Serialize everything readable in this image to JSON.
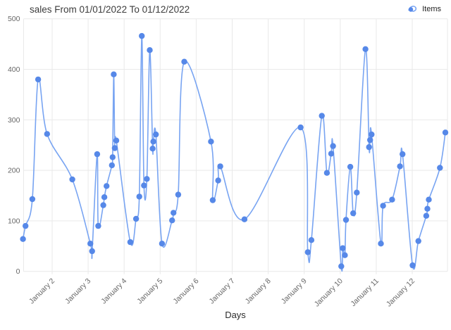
{
  "header": {
    "title": "sales From 01/01/2022 To 01/12/2022"
  },
  "legend": {
    "items": [
      {
        "label": "Items",
        "color": "#5688e8"
      }
    ]
  },
  "colors": {
    "marker": "#5688e8",
    "line": "#78a4f2",
    "grid": "#e9e9e9",
    "tick_text": "#666666",
    "title_text": "#3c3c3c",
    "background": "#ffffff"
  },
  "chart_data": {
    "type": "line",
    "title": "sales From 01/01/2022 To 01/12/2022",
    "xlabel": "Days",
    "ylabel": "",
    "ylim": [
      0,
      500
    ],
    "y_ticks": [
      0,
      100,
      200,
      300,
      400,
      500
    ],
    "x_tick_days": [
      2,
      3,
      4,
      5,
      6,
      7,
      8,
      9,
      10,
      11,
      12
    ],
    "x_tick_labels": [
      "January 2",
      "January 3",
      "January 4",
      "January 5",
      "January 6",
      "January 7",
      "January 8",
      "January 9",
      "January 10",
      "January 11",
      "January 12"
    ],
    "legend_entries": [
      "Items"
    ],
    "legend_position": "top-right",
    "grid": true,
    "smooth": true,
    "marker": "circle",
    "series": [
      {
        "name": "Items",
        "points": [
          {
            "day": 1.19,
            "value": 64
          },
          {
            "day": 1.26,
            "value": 90
          },
          {
            "day": 1.45,
            "value": 143
          },
          {
            "day": 1.61,
            "value": 380
          },
          {
            "day": 1.86,
            "value": 272
          },
          {
            "day": 2.56,
            "value": 182
          },
          {
            "day": 3.06,
            "value": 55
          },
          {
            "day": 3.11,
            "value": 40
          },
          {
            "day": 3.25,
            "value": 232
          },
          {
            "day": 3.28,
            "value": 90
          },
          {
            "day": 3.42,
            "value": 131
          },
          {
            "day": 3.45,
            "value": 147
          },
          {
            "day": 3.51,
            "value": 169
          },
          {
            "day": 3.66,
            "value": 210
          },
          {
            "day": 3.68,
            "value": 226
          },
          {
            "day": 3.71,
            "value": 390
          },
          {
            "day": 3.74,
            "value": 244
          },
          {
            "day": 3.78,
            "value": 259
          },
          {
            "day": 4.17,
            "value": 58
          },
          {
            "day": 4.33,
            "value": 104
          },
          {
            "day": 4.42,
            "value": 148
          },
          {
            "day": 4.49,
            "value": 466
          },
          {
            "day": 4.55,
            "value": 170
          },
          {
            "day": 4.63,
            "value": 183
          },
          {
            "day": 4.71,
            "value": 438
          },
          {
            "day": 4.79,
            "value": 243
          },
          {
            "day": 4.81,
            "value": 257
          },
          {
            "day": 4.88,
            "value": 271
          },
          {
            "day": 5.05,
            "value": 55
          },
          {
            "day": 5.33,
            "value": 101
          },
          {
            "day": 5.37,
            "value": 116
          },
          {
            "day": 5.5,
            "value": 152
          },
          {
            "day": 5.67,
            "value": 415
          },
          {
            "day": 6.41,
            "value": 257
          },
          {
            "day": 6.46,
            "value": 141
          },
          {
            "day": 6.61,
            "value": 180
          },
          {
            "day": 6.67,
            "value": 208
          },
          {
            "day": 7.34,
            "value": 103
          },
          {
            "day": 8.9,
            "value": 285
          },
          {
            "day": 9.1,
            "value": 38
          },
          {
            "day": 9.2,
            "value": 62
          },
          {
            "day": 9.49,
            "value": 308
          },
          {
            "day": 9.63,
            "value": 195
          },
          {
            "day": 9.75,
            "value": 233
          },
          {
            "day": 9.8,
            "value": 248
          },
          {
            "day": 10.03,
            "value": 10
          },
          {
            "day": 10.07,
            "value": 46
          },
          {
            "day": 10.13,
            "value": 32
          },
          {
            "day": 10.16,
            "value": 102
          },
          {
            "day": 10.28,
            "value": 207
          },
          {
            "day": 10.36,
            "value": 115
          },
          {
            "day": 10.46,
            "value": 156
          },
          {
            "day": 10.7,
            "value": 440
          },
          {
            "day": 10.8,
            "value": 246
          },
          {
            "day": 10.83,
            "value": 260
          },
          {
            "day": 10.87,
            "value": 271
          },
          {
            "day": 11.13,
            "value": 55
          },
          {
            "day": 11.19,
            "value": 130
          },
          {
            "day": 11.44,
            "value": 142
          },
          {
            "day": 11.66,
            "value": 208
          },
          {
            "day": 11.73,
            "value": 232
          },
          {
            "day": 12.01,
            "value": 12
          },
          {
            "day": 12.17,
            "value": 60
          },
          {
            "day": 12.39,
            "value": 110
          },
          {
            "day": 12.42,
            "value": 124
          },
          {
            "day": 12.46,
            "value": 142
          },
          {
            "day": 12.77,
            "value": 205
          },
          {
            "day": 12.92,
            "value": 275
          }
        ]
      }
    ]
  }
}
